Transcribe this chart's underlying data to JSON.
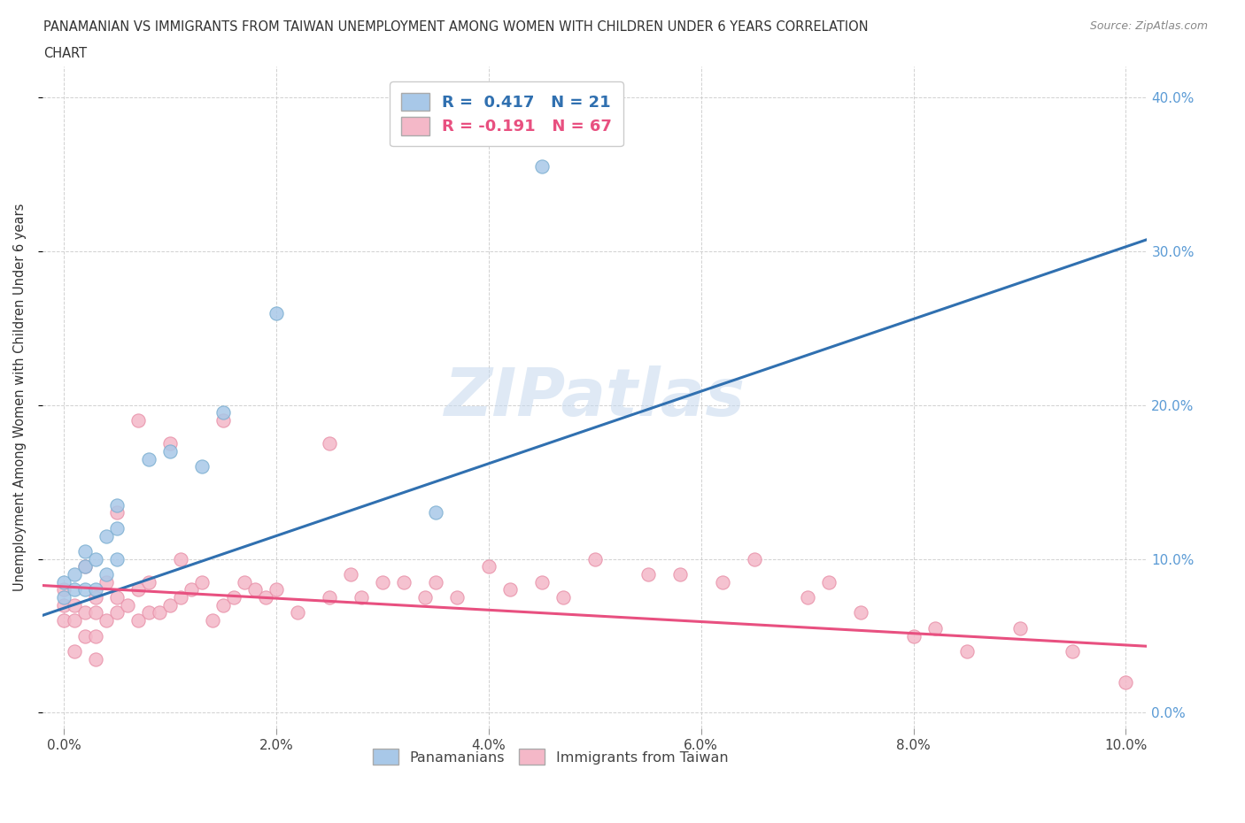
{
  "title_line1": "PANAMANIAN VS IMMIGRANTS FROM TAIWAN UNEMPLOYMENT AMONG WOMEN WITH CHILDREN UNDER 6 YEARS CORRELATION",
  "title_line2": "CHART",
  "source": "Source: ZipAtlas.com",
  "ylabel": "Unemployment Among Women with Children Under 6 years",
  "xlim": [
    -0.002,
    0.102
  ],
  "ylim": [
    -0.01,
    0.42
  ],
  "blue_color": "#a8c8e8",
  "blue_edge_color": "#7aaed0",
  "pink_color": "#f4b8c8",
  "pink_edge_color": "#e890a8",
  "blue_line_color": "#3070b0",
  "pink_line_color": "#e85080",
  "watermark": "ZIPatlas",
  "blue_intercept": 0.068,
  "blue_slope": 2.35,
  "pink_intercept": 0.082,
  "pink_slope": -0.38,
  "panamanian_x": [
    0.0,
    0.0,
    0.001,
    0.001,
    0.002,
    0.002,
    0.002,
    0.003,
    0.003,
    0.004,
    0.004,
    0.005,
    0.005,
    0.005,
    0.008,
    0.01,
    0.013,
    0.015,
    0.02,
    0.035,
    0.045
  ],
  "panamanian_y": [
    0.075,
    0.085,
    0.08,
    0.09,
    0.08,
    0.095,
    0.105,
    0.08,
    0.1,
    0.09,
    0.115,
    0.1,
    0.12,
    0.135,
    0.165,
    0.17,
    0.16,
    0.195,
    0.26,
    0.13,
    0.355
  ],
  "taiwan_x": [
    0.0,
    0.0,
    0.0,
    0.001,
    0.001,
    0.001,
    0.002,
    0.002,
    0.002,
    0.003,
    0.003,
    0.003,
    0.003,
    0.004,
    0.004,
    0.005,
    0.005,
    0.005,
    0.006,
    0.007,
    0.007,
    0.007,
    0.008,
    0.008,
    0.009,
    0.01,
    0.01,
    0.011,
    0.011,
    0.012,
    0.013,
    0.014,
    0.015,
    0.015,
    0.016,
    0.017,
    0.018,
    0.019,
    0.02,
    0.022,
    0.025,
    0.025,
    0.027,
    0.028,
    0.03,
    0.032,
    0.034,
    0.035,
    0.037,
    0.04,
    0.042,
    0.045,
    0.047,
    0.05,
    0.055,
    0.058,
    0.062,
    0.065,
    0.07,
    0.072,
    0.075,
    0.08,
    0.082,
    0.085,
    0.09,
    0.095,
    0.1
  ],
  "taiwan_y": [
    0.07,
    0.08,
    0.06,
    0.04,
    0.06,
    0.07,
    0.05,
    0.065,
    0.095,
    0.035,
    0.05,
    0.065,
    0.075,
    0.06,
    0.085,
    0.065,
    0.075,
    0.13,
    0.07,
    0.06,
    0.08,
    0.19,
    0.065,
    0.085,
    0.065,
    0.07,
    0.175,
    0.075,
    0.1,
    0.08,
    0.085,
    0.06,
    0.07,
    0.19,
    0.075,
    0.085,
    0.08,
    0.075,
    0.08,
    0.065,
    0.075,
    0.175,
    0.09,
    0.075,
    0.085,
    0.085,
    0.075,
    0.085,
    0.075,
    0.095,
    0.08,
    0.085,
    0.075,
    0.1,
    0.09,
    0.09,
    0.085,
    0.1,
    0.075,
    0.085,
    0.065,
    0.05,
    0.055,
    0.04,
    0.055,
    0.04,
    0.02
  ]
}
